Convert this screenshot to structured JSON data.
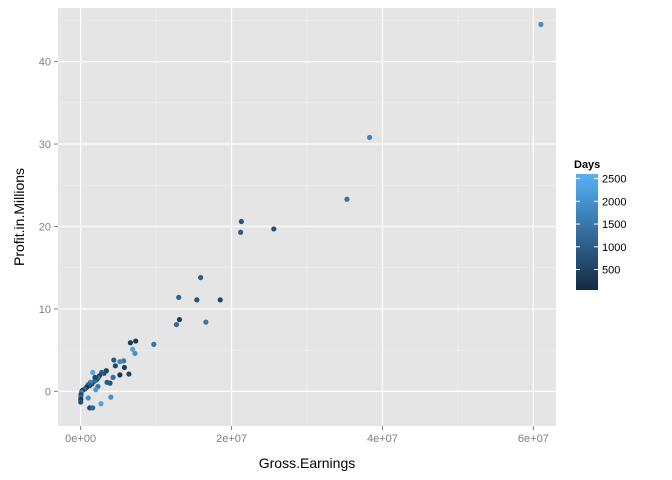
{
  "chart_data": {
    "type": "scatter",
    "title": "",
    "xlabel": "Gross.Earnings",
    "ylabel": "Profit.in.Millions",
    "xlim": [
      -3000000,
      63000000
    ],
    "ylim": [
      -4200000,
      46500000
    ],
    "x_ticks": [
      0,
      20000000,
      40000000,
      60000000
    ],
    "x_tick_labels": [
      "0e+00",
      "2e+07",
      "4e+07",
      "6e+07"
    ],
    "y_ticks": [
      0,
      10,
      20,
      30,
      40
    ],
    "y_tick_labels": [
      "0",
      "10",
      "20",
      "30",
      "40"
    ],
    "grid": true,
    "color_scale": {
      "title": "Days",
      "low_color": "#132B43",
      "high_color": "#56B1F7",
      "range": [
        50,
        2600
      ],
      "ticks": [
        500,
        1000,
        1500,
        2000,
        2500
      ],
      "tick_labels": [
        "500",
        "1000",
        "1500",
        "2000",
        "2500"
      ],
      "position": "right"
    },
    "points": [
      {
        "x": 61000000,
        "y": 44.5,
        "days": 1900
      },
      {
        "x": 38300000,
        "y": 30.8,
        "days": 1700
      },
      {
        "x": 35300000,
        "y": 23.3,
        "days": 1400
      },
      {
        "x": 21300000,
        "y": 20.6,
        "days": 800
      },
      {
        "x": 21200000,
        "y": 19.3,
        "days": 1000
      },
      {
        "x": 25600000,
        "y": 19.7,
        "days": 700
      },
      {
        "x": 15900000,
        "y": 13.8,
        "days": 1000
      },
      {
        "x": 13000000,
        "y": 11.4,
        "days": 1100
      },
      {
        "x": 15400000,
        "y": 11.1,
        "days": 800
      },
      {
        "x": 18500000,
        "y": 11.1,
        "days": 600
      },
      {
        "x": 13100000,
        "y": 8.7,
        "days": 500
      },
      {
        "x": 12700000,
        "y": 8.1,
        "days": 1200
      },
      {
        "x": 16600000,
        "y": 8.4,
        "days": 1500
      },
      {
        "x": 9700000,
        "y": 5.7,
        "days": 1400
      },
      {
        "x": 7300000,
        "y": 6.1,
        "days": 300
      },
      {
        "x": 6600000,
        "y": 5.9,
        "days": 400
      },
      {
        "x": 6900000,
        "y": 5.1,
        "days": 2300
      },
      {
        "x": 7200000,
        "y": 4.6,
        "days": 2000
      },
      {
        "x": 5700000,
        "y": 3.7,
        "days": 1500
      },
      {
        "x": 5200000,
        "y": 3.6,
        "days": 1800
      },
      {
        "x": 4400000,
        "y": 3.8,
        "days": 900
      },
      {
        "x": 4600000,
        "y": 3.1,
        "days": 600
      },
      {
        "x": 5800000,
        "y": 2.9,
        "days": 400
      },
      {
        "x": 6400000,
        "y": 2.1,
        "days": 500
      },
      {
        "x": 5200000,
        "y": 2.0,
        "days": 300
      },
      {
        "x": 4300000,
        "y": 1.7,
        "days": 1300
      },
      {
        "x": 3900000,
        "y": 1.0,
        "days": 800
      },
      {
        "x": 4000000,
        "y": -0.7,
        "days": 2000
      },
      {
        "x": 3400000,
        "y": 2.5,
        "days": 400
      },
      {
        "x": 3100000,
        "y": 2.2,
        "days": 700
      },
      {
        "x": 2800000,
        "y": 2.3,
        "days": 1000
      },
      {
        "x": 2500000,
        "y": 1.9,
        "days": 600
      },
      {
        "x": 2300000,
        "y": 1.6,
        "days": 1200
      },
      {
        "x": 2100000,
        "y": 1.4,
        "days": 900
      },
      {
        "x": 1800000,
        "y": 1.2,
        "days": 1400
      },
      {
        "x": 1600000,
        "y": 2.3,
        "days": 2400
      },
      {
        "x": 1500000,
        "y": 0.9,
        "days": 700
      },
      {
        "x": 1300000,
        "y": 1.1,
        "days": 1600
      },
      {
        "x": 1200000,
        "y": 0.7,
        "days": 500
      },
      {
        "x": 1000000,
        "y": 0.8,
        "days": 1100
      },
      {
        "x": 800000,
        "y": 0.5,
        "days": 300
      },
      {
        "x": 600000,
        "y": 0.3,
        "days": 800
      },
      {
        "x": 400000,
        "y": 0.2,
        "days": 1300
      },
      {
        "x": 200000,
        "y": 0.1,
        "days": 400
      },
      {
        "x": 100000,
        "y": -0.1,
        "days": 1700
      },
      {
        "x": 50000,
        "y": -0.4,
        "days": 600
      },
      {
        "x": 30000,
        "y": -0.7,
        "days": 1100
      },
      {
        "x": 20000,
        "y": -1.0,
        "days": 300
      },
      {
        "x": 10000,
        "y": -1.3,
        "days": 800
      },
      {
        "x": 1000000,
        "y": -0.8,
        "days": 1900
      },
      {
        "x": 1200000,
        "y": -2.0,
        "days": 700
      },
      {
        "x": 1600000,
        "y": -2.0,
        "days": 1200
      },
      {
        "x": 2700000,
        "y": -1.5,
        "days": 2300
      },
      {
        "x": 2300000,
        "y": 0.6,
        "days": 1500
      },
      {
        "x": 1900000,
        "y": 1.7,
        "days": 500
      },
      {
        "x": 3500000,
        "y": 1.1,
        "days": 1000
      },
      {
        "x": 2000000,
        "y": 0.2,
        "days": 2100
      }
    ]
  }
}
